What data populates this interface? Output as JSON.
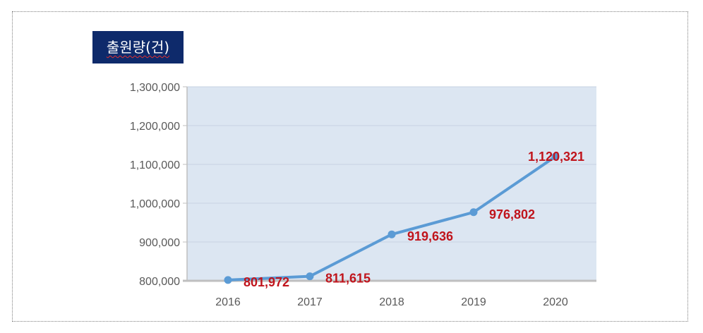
{
  "chart_data": {
    "type": "line",
    "title": "출원량(건)",
    "categories": [
      "2016",
      "2017",
      "2018",
      "2019",
      "2020"
    ],
    "series": [
      {
        "values": [
          801972,
          811615,
          919636,
          976802,
          1120321
        ]
      }
    ],
    "data_labels": [
      "801,972",
      "811,615",
      "919,636",
      "976,802",
      "1,120,321"
    ],
    "yticks": [
      "800,000",
      "900,000",
      "1,000,000",
      "1,100,000",
      "1,200,000",
      "1,300,000"
    ],
    "ylim": [
      800000,
      1300000
    ],
    "grid": true,
    "legend": "none"
  },
  "colors": {
    "title_bg": "#0e2a6b",
    "plot_bg": "#dce6f2",
    "line": "#5b9bd5",
    "label": "#c0141c",
    "axis_text": "#595959"
  }
}
